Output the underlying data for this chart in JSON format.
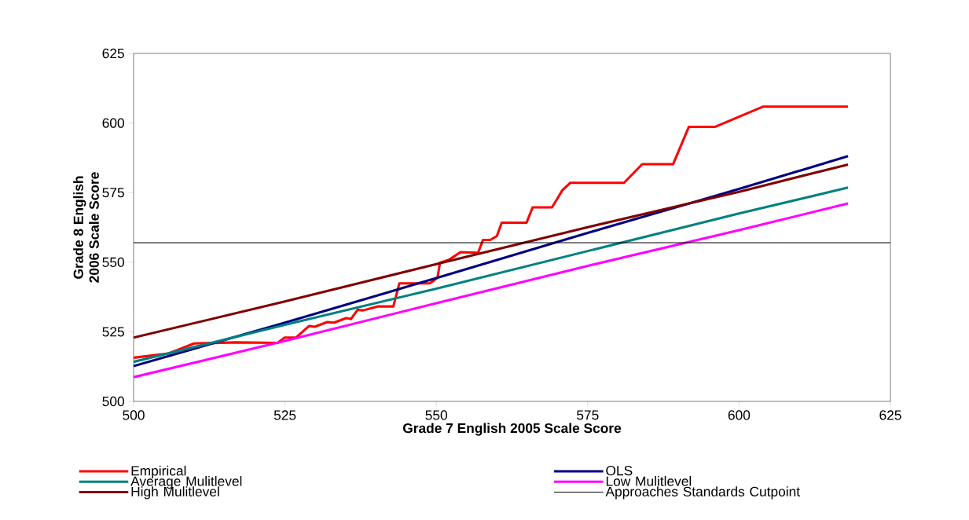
{
  "chart_data": {
    "type": "line",
    "xlabel": "Grade 7 English 2005 Scale Score",
    "ylabel": "Grade 8 English\n2006 Scale Score",
    "xlim": [
      500,
      625
    ],
    "ylim": [
      500,
      625
    ],
    "xticks": [
      500,
      525,
      550,
      575,
      600,
      625
    ],
    "yticks": [
      500,
      525,
      550,
      575,
      600,
      625
    ],
    "grid": false,
    "legend": "bottom",
    "line_style": "solid",
    "marker": "none",
    "series": [
      {
        "name": "Empirical",
        "color": "#ff0000",
        "x": [
          500,
          505.8,
          510.0,
          516.9,
          523.8,
          524.9,
          526.8,
          529.0,
          529.9,
          532.0,
          533.1,
          535.1,
          535.9,
          537.0,
          537.9,
          540.3,
          542.9,
          543.9,
          548.9,
          549.4,
          550.2,
          550.6,
          552.1,
          554.0,
          556.9,
          557.7,
          558.9,
          560.0,
          560.8,
          564.9,
          565.9,
          569.1,
          569.9,
          570.8,
          572.1,
          581.0,
          584.0,
          589.1,
          591.7,
          596.0,
          604.0,
          618
        ],
        "values": [
          515.7,
          517.2,
          520.8,
          521.2,
          521.0,
          522.9,
          522.9,
          527.1,
          526.8,
          528.5,
          528.3,
          529.9,
          529.6,
          532.9,
          532.7,
          534.1,
          534.1,
          542.4,
          542.4,
          543.1,
          544.5,
          549.8,
          550.9,
          553.6,
          553.4,
          558.0,
          558.0,
          559.4,
          564.2,
          564.2,
          569.7,
          569.7,
          572.5,
          575.8,
          578.5,
          578.5,
          585.2,
          585.2,
          598.6,
          598.6,
          605.9,
          605.9
        ]
      },
      {
        "name": "OLS",
        "color": "#000080",
        "x": [
          500,
          525,
          550,
          575,
          600,
          618
        ],
        "values": [
          512.7,
          528.3,
          544.3,
          560.5,
          576.3,
          588.1
        ]
      },
      {
        "name": "Average Mulitlevel",
        "color": "#008080",
        "x": [
          500,
          525,
          550,
          575,
          600,
          618
        ],
        "values": [
          514.2,
          527.5,
          540.5,
          554.0,
          567.5,
          576.8
        ]
      },
      {
        "name": "Low Mulitlevel",
        "color": "#ff00ff",
        "x": [
          500,
          525,
          550,
          575,
          600,
          618
        ],
        "values": [
          508.7,
          521.7,
          535.3,
          548.7,
          561.5,
          571.1
        ]
      },
      {
        "name": "High Mulitlevel",
        "color": "#800000",
        "x": [
          500,
          525,
          550,
          575,
          600,
          618
        ],
        "values": [
          522.9,
          535.9,
          549.3,
          562.6,
          575.3,
          585.1
        ]
      }
    ],
    "ref_lines": [
      {
        "axis": "y",
        "value": 557,
        "label": "Approaches Standards Cutpoint",
        "color": "#000000",
        "line_style": "solid"
      }
    ]
  }
}
